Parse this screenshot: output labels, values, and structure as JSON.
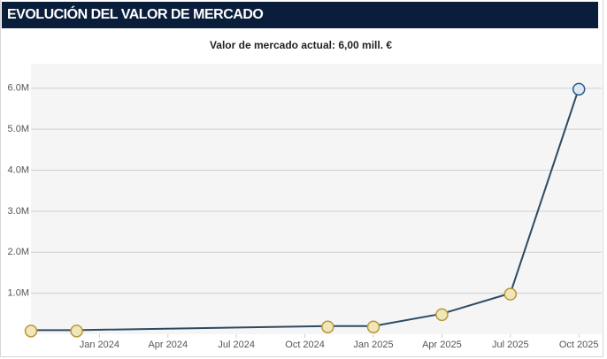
{
  "chart_data": {
    "type": "line",
    "title": "EVOLUCIÓN DEL VALOR DE MERCADO",
    "subtitle": "Valor de mercado actual: 6,00 mill. €",
    "x": [
      "2023-10",
      "2023-12",
      "2024-11",
      "2025-01",
      "2025-04",
      "2025-07",
      "2025-10"
    ],
    "series": [
      {
        "color": "#2e4a62",
        "values": [
          100000,
          100000,
          200000,
          200000,
          500000,
          1000000,
          6000000
        ]
      }
    ],
    "xlim": [
      "2023-10",
      "2025-11"
    ],
    "xticks": [
      {
        "value": "2024-01",
        "label": "Jan 2024"
      },
      {
        "value": "2024-04",
        "label": "Apr 2024"
      },
      {
        "value": "2024-07",
        "label": "Jul 2024"
      },
      {
        "value": "2024-10",
        "label": "Oct 2024"
      },
      {
        "value": "2025-01",
        "label": "Jan 2025"
      },
      {
        "value": "2025-04",
        "label": "Apr 2025"
      },
      {
        "value": "2025-07",
        "label": "Jul 2025"
      },
      {
        "value": "2025-10",
        "label": "Oct 2025"
      }
    ],
    "ylim": [
      0,
      6600000
    ],
    "yticks": [
      {
        "value": 1000000,
        "label": "1.0M"
      },
      {
        "value": 2000000,
        "label": "2.0M"
      },
      {
        "value": 3000000,
        "label": "3.0M"
      },
      {
        "value": 4000000,
        "label": "4.0M"
      },
      {
        "value": 5000000,
        "label": "5.0M"
      },
      {
        "value": 6000000,
        "label": "6.0M"
      }
    ],
    "grid": true
  }
}
